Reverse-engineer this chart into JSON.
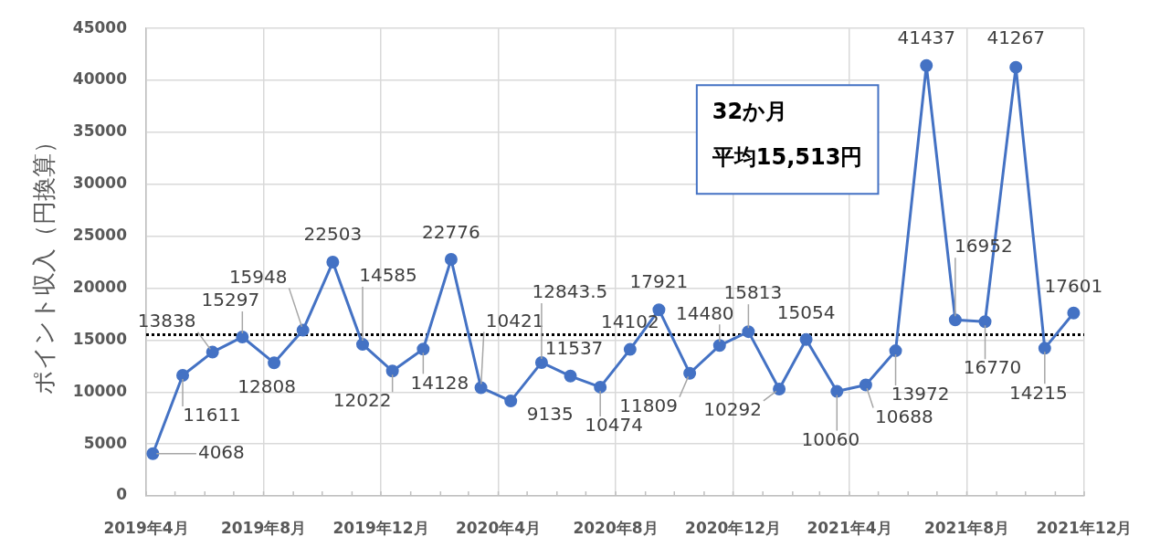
{
  "chart_data": {
    "type": "line",
    "ylabel": "ポイント収入（円換算）",
    "x": [
      "2019-04-08",
      "2019-05-09",
      "2019-06-09",
      "2019-07-10",
      "2019-08-12",
      "2019-09-11",
      "2019-10-12",
      "2019-11-12",
      "2019-12-13",
      "2020-01-14",
      "2020-02-12",
      "2020-03-14",
      "2020-04-14",
      "2020-05-16",
      "2020-06-15",
      "2020-07-16",
      "2020-08-16",
      "2020-09-15",
      "2020-10-17",
      "2020-11-17",
      "2020-12-17",
      "2021-01-18",
      "2021-02-15",
      "2021-03-19",
      "2021-04-18",
      "2021-05-19",
      "2021-06-20",
      "2021-07-20",
      "2021-08-20",
      "2021-09-21",
      "2021-10-21",
      "2021-11-20"
    ],
    "values": [
      4068,
      11611,
      13838,
      15297,
      12808,
      15948,
      22503,
      14585,
      12022,
      14128,
      22776,
      10421,
      9135,
      12843.5,
      11537,
      10474,
      14102,
      17921,
      11809,
      14480,
      15813,
      10292,
      15054,
      10060,
      10688,
      13972,
      41437,
      16952,
      16770,
      41267,
      14215,
      17601
    ],
    "color": "#4472c4",
    "marker": "circle",
    "data_labels": true,
    "xlim": [
      "2019-04",
      "2021-12"
    ],
    "xticks": [
      {
        "value": "2019-04",
        "label": "2019年4月"
      },
      {
        "value": "2019-05",
        "label": null
      },
      {
        "value": "2019-06",
        "label": null
      },
      {
        "value": "2019-07",
        "label": null
      },
      {
        "value": "2019-08",
        "label": "2019年8月"
      },
      {
        "value": "2019-09",
        "label": null
      },
      {
        "value": "2019-10",
        "label": null
      },
      {
        "value": "2019-11",
        "label": null
      },
      {
        "value": "2019-12",
        "label": "2019年12月"
      },
      {
        "value": "2020-01",
        "label": null
      },
      {
        "value": "2020-02",
        "label": null
      },
      {
        "value": "2020-03",
        "label": null
      },
      {
        "value": "2020-04",
        "label": "2020年4月"
      },
      {
        "value": "2020-05",
        "label": null
      },
      {
        "value": "2020-06",
        "label": null
      },
      {
        "value": "2020-07",
        "label": null
      },
      {
        "value": "2020-08",
        "label": "2020年8月"
      },
      {
        "value": "2020-09",
        "label": null
      },
      {
        "value": "2020-10",
        "label": null
      },
      {
        "value": "2020-11",
        "label": null
      },
      {
        "value": "2020-12",
        "label": "2020年12月"
      },
      {
        "value": "2021-01",
        "label": null
      },
      {
        "value": "2021-02",
        "label": null
      },
      {
        "value": "2021-03",
        "label": null
      },
      {
        "value": "2021-04",
        "label": "2021年4月"
      },
      {
        "value": "2021-05",
        "label": null
      },
      {
        "value": "2021-06",
        "label": null
      },
      {
        "value": "2021-07",
        "label": null
      },
      {
        "value": "2021-08",
        "label": "2021年8月"
      },
      {
        "value": "2021-09",
        "label": null
      },
      {
        "value": "2021-10",
        "label": null
      },
      {
        "value": "2021-11",
        "label": null
      },
      {
        "value": "2021-12",
        "label": "2021年12月"
      }
    ],
    "ylim": [
      0,
      45000
    ],
    "yticks": [
      0,
      5000,
      10000,
      15000,
      20000,
      25000,
      30000,
      35000,
      40000,
      45000
    ],
    "grid": true,
    "ref_lines": [
      {
        "axis": "y",
        "value": 15513,
        "color": "#000000",
        "line_style": "dotted"
      }
    ],
    "annotations": [
      "32か月",
      "平均15,513円"
    ]
  }
}
